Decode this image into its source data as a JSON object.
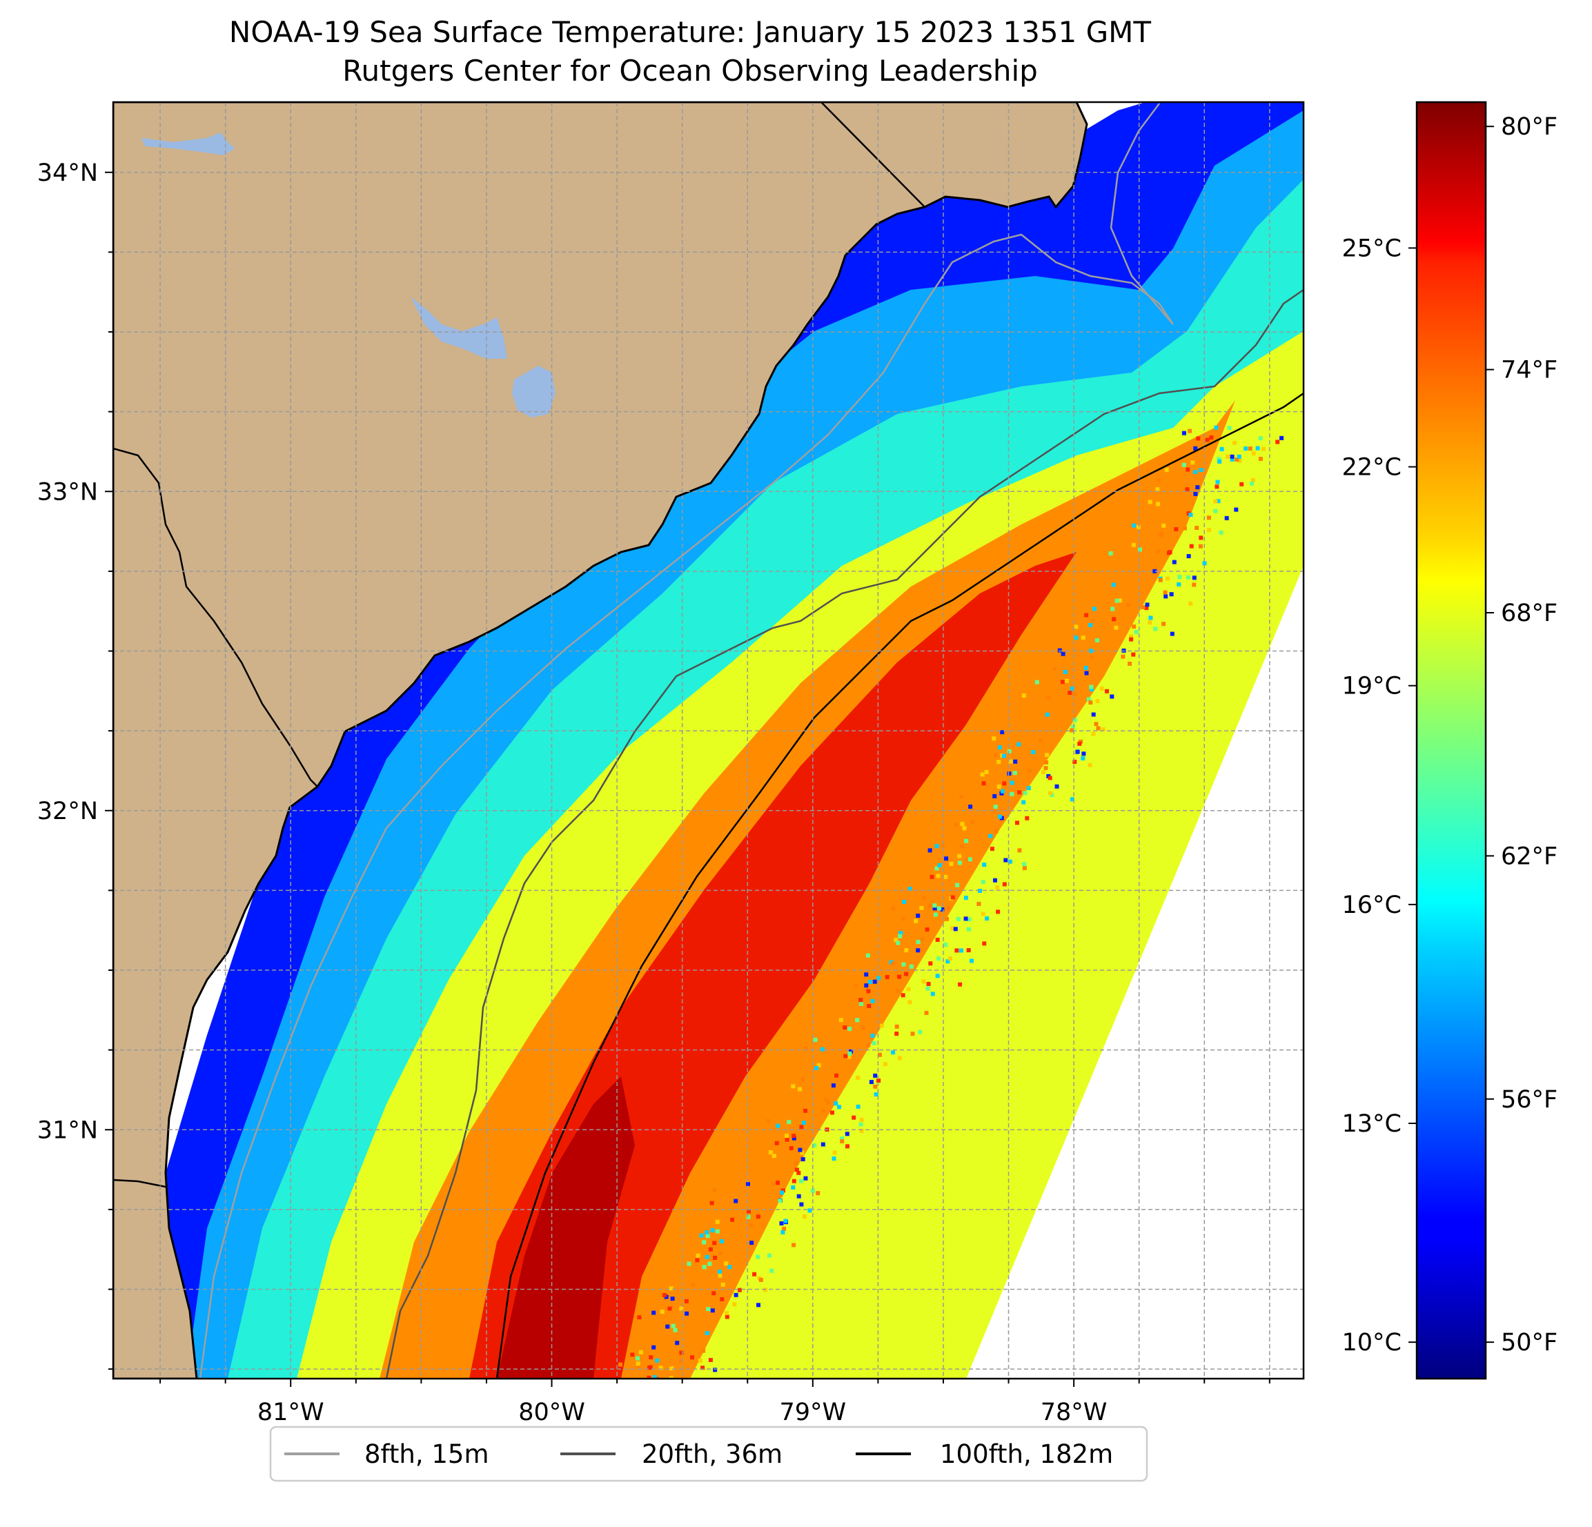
{
  "title": {
    "line1": "NOAA-19 Sea Surface Temperature: January 15 2023 1351 GMT",
    "line2": "Rutgers Center for Ocean Observing Leadership"
  },
  "map": {
    "lon_range": [
      -81.68,
      -77.12
    ],
    "lat_range": [
      30.22,
      34.22
    ],
    "grid": true,
    "land_color": "#cfb28a",
    "lake_color": "#9ab9e3",
    "no_data_color": "#ffffff",
    "lon_ticks": [
      {
        "value": -81,
        "label": "81°W"
      },
      {
        "value": -80,
        "label": "80°W"
      },
      {
        "value": -79,
        "label": "79°W"
      },
      {
        "value": -78,
        "label": "78°W"
      }
    ],
    "lat_ticks": [
      {
        "value": 34,
        "label": "34°N"
      },
      {
        "value": 33,
        "label": "33°N"
      },
      {
        "value": 32,
        "label": "32°N"
      },
      {
        "value": 31,
        "label": "31°N"
      }
    ]
  },
  "colorbar": {
    "colormap": "jet",
    "range_c": [
      9.5,
      27.0
    ],
    "celsius_ticks": [
      {
        "value": 10,
        "label": "10°C"
      },
      {
        "value": 13,
        "label": "13°C"
      },
      {
        "value": 16,
        "label": "16°C"
      },
      {
        "value": 19,
        "label": "19°C"
      },
      {
        "value": 22,
        "label": "22°C"
      },
      {
        "value": 25,
        "label": "25°C"
      }
    ],
    "fahrenheit_ticks": [
      {
        "value": 50,
        "label": "50°F"
      },
      {
        "value": 56,
        "label": "56°F"
      },
      {
        "value": 62,
        "label": "62°F"
      },
      {
        "value": 68,
        "label": "68°F"
      },
      {
        "value": 74,
        "label": "74°F"
      },
      {
        "value": 80,
        "label": "80°F"
      }
    ]
  },
  "legend": {
    "position": "bottom-center",
    "items": [
      {
        "label": "8fth, 15m",
        "color": "#a0a0a0"
      },
      {
        "label": "20fth, 36m",
        "color": "#505050"
      },
      {
        "label": "100fth, 182m",
        "color": "#000000"
      }
    ]
  }
}
